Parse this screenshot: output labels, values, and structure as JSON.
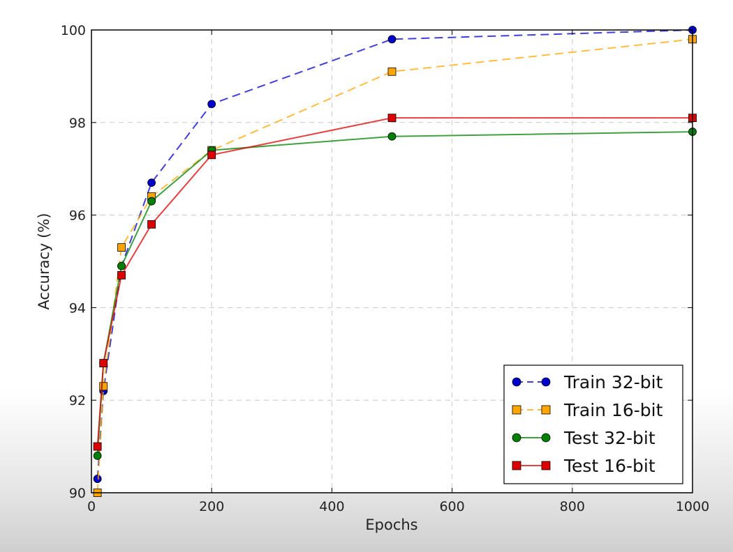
{
  "chart_data": {
    "type": "line",
    "title": "",
    "xlabel": "Epochs",
    "ylabel": "Accuracy (%)",
    "xlim": [
      0,
      1000
    ],
    "ylim": [
      90,
      100
    ],
    "xticks": [
      0,
      200,
      400,
      600,
      800,
      1000
    ],
    "yticks": [
      90,
      92,
      94,
      96,
      98,
      100
    ],
    "grid": true,
    "legend_position": "bottom-right",
    "series": [
      {
        "name": "Train 32-bit",
        "color": "#0000cc",
        "line_style": "dashed",
        "marker": "circle",
        "x": [
          10,
          20,
          50,
          100,
          200,
          500,
          1000
        ],
        "y": [
          90.3,
          92.2,
          94.9,
          96.7,
          98.4,
          99.8,
          100.0
        ]
      },
      {
        "name": "Train 16-bit",
        "color": "#ffa500",
        "line_style": "dashed",
        "marker": "square",
        "x": [
          10,
          20,
          50,
          100,
          200,
          500,
          1000
        ],
        "y": [
          90.0,
          92.3,
          95.3,
          96.4,
          97.4,
          99.1,
          99.8
        ]
      },
      {
        "name": "Test 32-bit",
        "color": "#008000",
        "line_style": "solid",
        "marker": "circle",
        "x": [
          10,
          20,
          50,
          100,
          200,
          500,
          1000
        ],
        "y": [
          90.8,
          92.8,
          94.9,
          96.3,
          97.4,
          97.7,
          97.8
        ]
      },
      {
        "name": "Test 16-bit",
        "color": "#dd0000",
        "line_style": "solid",
        "marker": "square",
        "x": [
          10,
          20,
          50,
          100,
          200,
          500,
          1000
        ],
        "y": [
          91.0,
          92.8,
          94.7,
          95.8,
          97.3,
          98.1,
          98.1
        ]
      }
    ]
  }
}
